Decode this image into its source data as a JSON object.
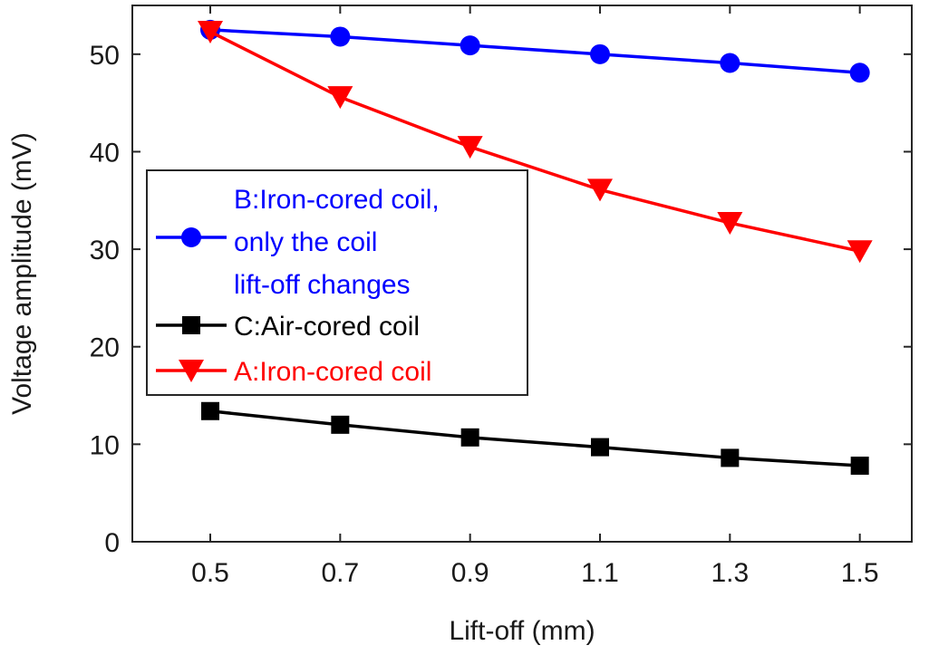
{
  "chart_data": {
    "type": "line",
    "xlabel": "Lift-off (mm)",
    "ylabel": "Voltage amplitude (mV)",
    "x": [
      0.5,
      0.7,
      0.9,
      1.1,
      1.3,
      1.5
    ],
    "x_tick_labels": [
      "0.5",
      "0.7",
      "0.9",
      "1.1",
      "1.3",
      "1.5"
    ],
    "y_ticks": [
      0,
      10,
      20,
      30,
      40,
      50
    ],
    "y_tick_labels": [
      "0",
      "10",
      "20",
      "30",
      "40",
      "50"
    ],
    "xlim": [
      0.38,
      1.58
    ],
    "ylim": [
      0,
      55
    ],
    "grid": false,
    "legend_position": "center-left",
    "series": [
      {
        "name_lines": [
          "B:Iron-cored coil,",
          "only the coil",
          "lift-off changes"
        ],
        "color": "#0000ff",
        "marker": "circle",
        "values": [
          52.5,
          51.8,
          50.9,
          50.0,
          49.1,
          48.1
        ]
      },
      {
        "name_lines": [
          "C:Air-cored coil"
        ],
        "color": "#000000",
        "marker": "square",
        "values": [
          13.4,
          12.0,
          10.7,
          9.7,
          8.6,
          7.8
        ]
      },
      {
        "name_lines": [
          "A:Iron-cored coil"
        ],
        "color": "#ff0000",
        "marker": "triangle-down",
        "values": [
          52.3,
          45.6,
          40.5,
          36.1,
          32.7,
          29.8
        ]
      }
    ]
  }
}
